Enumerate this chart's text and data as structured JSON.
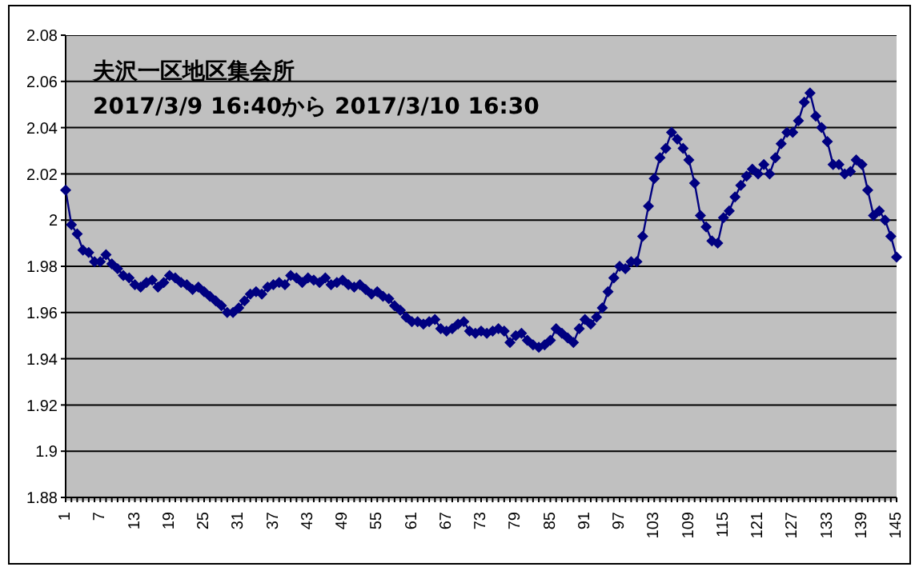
{
  "chart_data": {
    "type": "line",
    "title": "夫沢一区地区集会所",
    "subtitle": "2017/3/9 16:40から 2017/3/10 16:30",
    "categories": [
      "1",
      null,
      null,
      null,
      null,
      null,
      "7",
      null,
      null,
      null,
      null,
      null,
      "13",
      null,
      null,
      null,
      null,
      null,
      "19",
      null,
      null,
      null,
      null,
      null,
      "25",
      null,
      null,
      null,
      null,
      null,
      "31",
      null,
      null,
      null,
      null,
      null,
      "37",
      null,
      null,
      null,
      null,
      null,
      "43",
      null,
      null,
      null,
      null,
      null,
      "49",
      null,
      null,
      null,
      null,
      null,
      "55",
      null,
      null,
      null,
      null,
      null,
      "61",
      null,
      null,
      null,
      null,
      null,
      "67",
      null,
      null,
      null,
      null,
      null,
      "73",
      null,
      null,
      null,
      null,
      null,
      "79",
      null,
      null,
      null,
      null,
      null,
      "85",
      null,
      null,
      null,
      null,
      null,
      "91",
      null,
      null,
      null,
      null,
      null,
      "97",
      null,
      null,
      null,
      null,
      null,
      "103",
      null,
      null,
      null,
      null,
      null,
      "109",
      null,
      null,
      null,
      null,
      null,
      "115",
      null,
      null,
      null,
      null,
      null,
      "121",
      null,
      null,
      null,
      null,
      null,
      "127",
      null,
      null,
      null,
      null,
      null,
      "133",
      null,
      null,
      null,
      null,
      null,
      "139",
      null,
      null,
      null,
      null,
      null,
      "145"
    ],
    "series": [
      {
        "color": "#000080",
        "values": [
          2.013,
          1.998,
          1.994,
          1.987,
          1.986,
          1.982,
          1.982,
          1.985,
          1.981,
          1.979,
          1.976,
          1.975,
          1.972,
          1.971,
          1.973,
          1.974,
          1.971,
          1.973,
          1.976,
          1.975,
          1.973,
          1.972,
          1.97,
          1.971,
          1.969,
          1.967,
          1.965,
          1.963,
          1.96,
          1.96,
          1.962,
          1.965,
          1.968,
          1.969,
          1.968,
          1.971,
          1.972,
          1.973,
          1.972,
          1.976,
          1.975,
          1.973,
          1.975,
          1.974,
          1.973,
          1.975,
          1.972,
          1.973,
          1.974,
          1.972,
          1.971,
          1.972,
          1.97,
          1.968,
          1.969,
          1.967,
          1.966,
          1.963,
          1.961,
          1.958,
          1.956,
          1.956,
          1.955,
          1.956,
          1.957,
          1.953,
          1.952,
          1.953,
          1.955,
          1.956,
          1.952,
          1.951,
          1.952,
          1.951,
          1.952,
          1.953,
          1.952,
          1.947,
          1.95,
          1.951,
          1.948,
          1.946,
          1.945,
          1.946,
          1.948,
          1.953,
          1.951,
          1.949,
          1.947,
          1.953,
          1.957,
          1.955,
          1.958,
          1.962,
          1.969,
          1.975,
          1.98,
          1.979,
          1.982,
          1.982,
          1.993,
          2.006,
          2.018,
          2.027,
          2.031,
          2.038,
          2.035,
          2.031,
          2.026,
          2.016,
          2.002,
          1.997,
          1.991,
          1.99,
          2.001,
          2.004,
          2.01,
          2.015,
          2.019,
          2.022,
          2.02,
          2.024,
          2.02,
          2.027,
          2.033,
          2.038,
          2.038,
          2.043,
          2.051,
          2.055,
          2.045,
          2.04,
          2.034,
          2.024,
          2.024,
          2.02,
          2.021,
          2.026,
          2.024,
          2.013,
          2.002,
          2.004,
          2.0,
          1.993,
          1.984
        ]
      }
    ],
    "ylim": [
      1.88,
      2.08
    ],
    "yticks": [
      1.88,
      1.9,
      1.92,
      1.94,
      1.96,
      1.98,
      2,
      2.02,
      2.04,
      2.06,
      2.08
    ],
    "grid": "y",
    "marker": "diamond",
    "line_style": "solid"
  }
}
